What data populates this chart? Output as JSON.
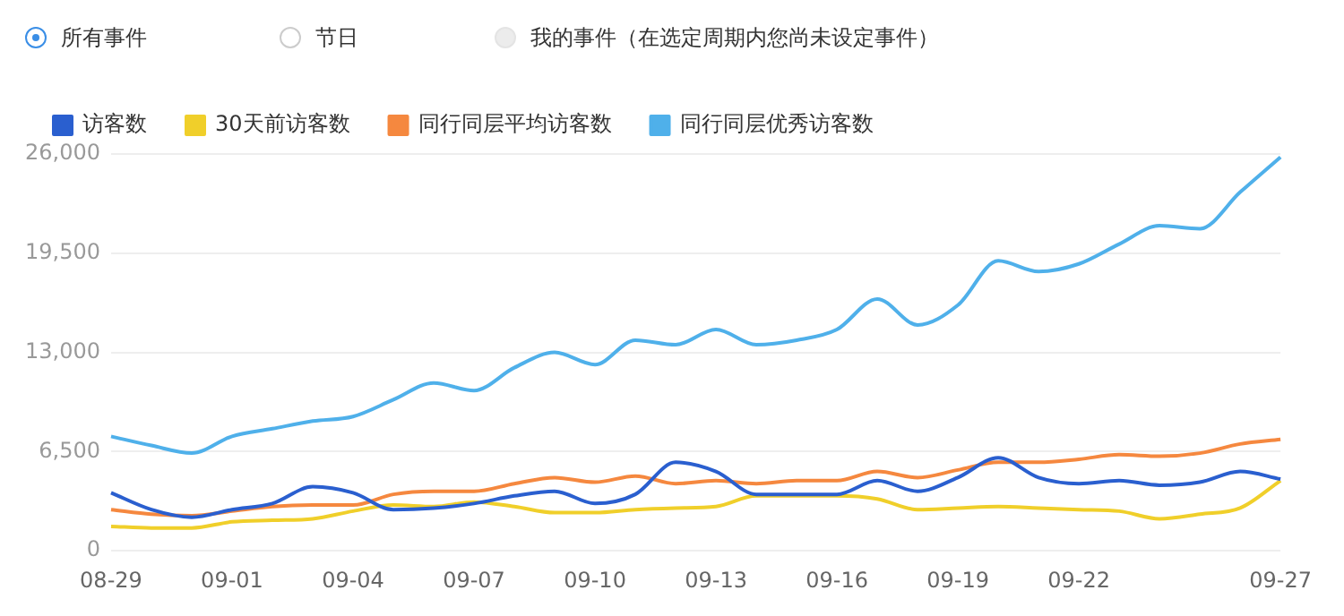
{
  "chart_data": {
    "type": "line",
    "annotations": [
      "所有事件",
      "节日",
      "我的事件（在选定周期内您尚未设定事件）"
    ],
    "categories": [
      "08-29",
      null,
      null,
      "09-01",
      null,
      null,
      "09-04",
      null,
      null,
      "09-07",
      null,
      null,
      "09-10",
      null,
      null,
      "09-13",
      null,
      null,
      "09-16",
      null,
      null,
      "09-19",
      null,
      null,
      "09-22",
      null,
      null,
      null,
      null,
      "09-27"
    ],
    "series": [
      {
        "name": "访客数",
        "color": "#2a5fcf",
        "values": [
          3800,
          2700,
          2200,
          2700,
          3100,
          4200,
          3800,
          2700,
          2800,
          3100,
          3600,
          3900,
          3100,
          3700,
          5800,
          5200,
          3700,
          3700,
          3700,
          4600,
          3900,
          4800,
          6100,
          4800,
          4400,
          4600,
          4300,
          4500,
          5200,
          4700
        ]
      },
      {
        "name": "30天前访客数",
        "color": "#f0cf2a",
        "values": [
          1600,
          1500,
          1500,
          1900,
          2000,
          2100,
          2600,
          3000,
          2900,
          3200,
          2900,
          2500,
          2500,
          2700,
          2800,
          2900,
          3600,
          3600,
          3600,
          3400,
          2700,
          2800,
          2900,
          2800,
          2700,
          2600,
          2100,
          2400,
          2800,
          4600
        ]
      },
      {
        "name": "同行同层平均访客数",
        "color": "#f5883f",
        "values": [
          2700,
          2400,
          2300,
          2600,
          2900,
          3000,
          3000,
          3700,
          3900,
          3900,
          4400,
          4800,
          4500,
          4900,
          4400,
          4600,
          4400,
          4600,
          4600,
          5200,
          4800,
          5300,
          5800,
          5800,
          6000,
          6300,
          6200,
          6400,
          7000,
          7300
        ]
      },
      {
        "name": "同行同层优秀访客数",
        "color": "#4fb0ea",
        "values": [
          7500,
          6900,
          6400,
          7500,
          8000,
          8500,
          8800,
          9900,
          11000,
          10500,
          12000,
          13000,
          12200,
          13800,
          13500,
          14500,
          13500,
          13800,
          14500,
          16500,
          14800,
          16100,
          19000,
          18300,
          18800,
          20100,
          21300,
          21100,
          23500,
          25800
        ]
      }
    ],
    "ylim": [
      0,
      26000
    ],
    "yticks": [
      0,
      {
        "value": 6500,
        "label": "6,500"
      },
      {
        "value": 13000,
        "label": "13,000"
      },
      {
        "value": 19500,
        "label": "19,500"
      },
      {
        "value": 26000,
        "label": "26,000"
      }
    ],
    "grid": "y",
    "legend": "top left",
    "marker": "none",
    "line_style": "solid"
  }
}
